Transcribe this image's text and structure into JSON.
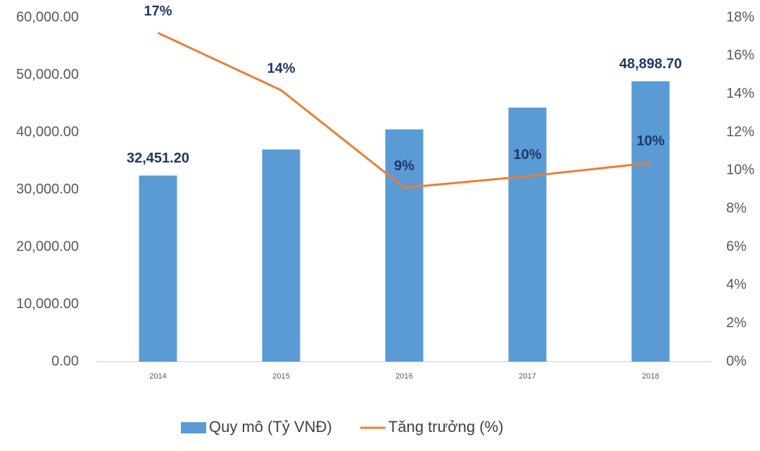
{
  "chart_data": {
    "type": "bar_line",
    "categories": [
      "2014",
      "2015",
      "2016",
      "2017",
      "2018"
    ],
    "series": [
      {
        "name": "Quy mô (Tỷ VNĐ)",
        "type": "bar",
        "color": "#5b9bd5",
        "values": [
          32451.2,
          37000,
          40500,
          44300,
          48898.7
        ],
        "value_labels": [
          "32,451.20",
          null,
          null,
          null,
          "48,898.70"
        ]
      },
      {
        "name": "Tăng trưởng (%)",
        "type": "line",
        "axis": "y2",
        "color": "#ed7d31",
        "values": [
          17.2,
          14.2,
          9.1,
          9.7,
          10.4
        ],
        "value_labels": [
          "17%",
          "14%",
          "9%",
          "10%",
          "10%"
        ]
      }
    ],
    "ylim": [
      0,
      60000
    ],
    "yticks": [
      {
        "value": 0,
        "label": "0.00"
      },
      {
        "value": 10000,
        "label": "10,000.00"
      },
      {
        "value": 20000,
        "label": "20,000.00"
      },
      {
        "value": 30000,
        "label": "30,000.00"
      },
      {
        "value": 40000,
        "label": "40,000.00"
      },
      {
        "value": 50000,
        "label": "50,000.00"
      },
      {
        "value": 60000,
        "label": "60,000.00"
      }
    ],
    "y2lim": [
      0,
      18
    ],
    "y2ticks": [
      {
        "value": 0,
        "label": "0%"
      },
      {
        "value": 2,
        "label": "2%"
      },
      {
        "value": 4,
        "label": "4%"
      },
      {
        "value": 6,
        "label": "6%"
      },
      {
        "value": 8,
        "label": "8%"
      },
      {
        "value": 10,
        "label": "10%"
      },
      {
        "value": 12,
        "label": "12%"
      },
      {
        "value": 14,
        "label": "14%"
      },
      {
        "value": 16,
        "label": "16%"
      },
      {
        "value": 18,
        "label": "18%"
      }
    ],
    "grid": false,
    "legend": "bottom"
  }
}
